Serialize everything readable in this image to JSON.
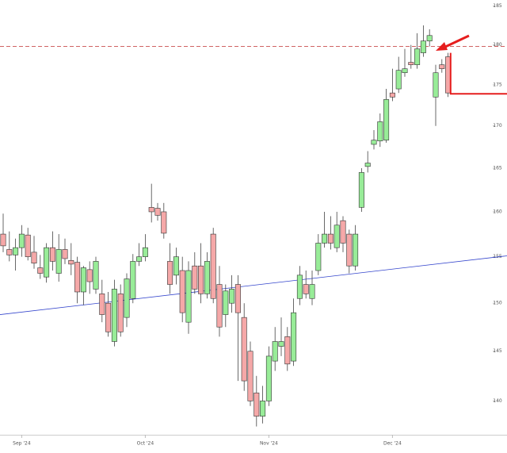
{
  "chart_data": {
    "type": "candlestick",
    "log_scale": true,
    "ylim": [
      136.7,
      185.8
    ],
    "yticks": [
      140,
      145,
      150,
      155,
      160,
      165,
      170,
      175,
      180,
      185
    ],
    "categories": [
      null,
      null,
      null,
      "Sep '24",
      null,
      null,
      null,
      null,
      null,
      null,
      null,
      null,
      null,
      null,
      null,
      null,
      null,
      null,
      null,
      null,
      null,
      null,
      null,
      "Oct '24",
      null,
      null,
      null,
      null,
      null,
      null,
      null,
      null,
      null,
      null,
      null,
      null,
      null,
      null,
      null,
      null,
      null,
      null,
      null,
      "Nov '24",
      null,
      null,
      null,
      null,
      null,
      null,
      null,
      null,
      null,
      null,
      null,
      null,
      null,
      null,
      null,
      null,
      null,
      null,
      null,
      "Dec '24",
      null,
      null,
      null,
      null,
      null,
      null,
      null,
      null,
      null
    ],
    "open": [
      157.5,
      155.8,
      155.2,
      156,
      157.4,
      155.5,
      153.8,
      152.8,
      156,
      153.2,
      155.8,
      154.6,
      154.4,
      151.2,
      153.6,
      151.5,
      151,
      150,
      146,
      151,
      148.5,
      150.5,
      154.5,
      155,
      160.5,
      160.4,
      160,
      154.5,
      153,
      153.5,
      148,
      154,
      154,
      151,
      157.5,
      152,
      148.8,
      150,
      152,
      148.5,
      145,
      140.8,
      138.5,
      140,
      144,
      145.5,
      146.5,
      144,
      150.5,
      152,
      150.5,
      153.5,
      156.5,
      157.5,
      156,
      159,
      157.5,
      154,
      160.5,
      165.2,
      167.8,
      168.2,
      168.3,
      174,
      174.5,
      176.5,
      177.8,
      177.5,
      179,
      180.5,
      173.5,
      177.5,
      178.5
    ],
    "high": [
      159.8,
      157.8,
      157,
      158.5,
      158.2,
      157.3,
      155.2,
      156.5,
      157.8,
      157.5,
      157,
      156.5,
      155,
      154,
      154.5,
      155,
      152.5,
      151.2,
      152.5,
      152,
      153.2,
      155.3,
      156.5,
      157.5,
      163.2,
      161,
      161,
      156.5,
      156,
      155,
      154.5,
      155.5,
      156.5,
      155.5,
      158.2,
      154,
      152,
      153,
      153,
      150,
      146,
      142.5,
      141.5,
      145.5,
      147.5,
      148.5,
      147.5,
      150.5,
      154,
      153.5,
      153.5,
      157.5,
      160,
      159.5,
      160,
      159.5,
      158,
      158.5,
      165,
      167,
      169.5,
      171.5,
      174.5,
      177,
      178.5,
      179.5,
      180,
      181.5,
      182.5,
      182,
      177.5,
      178.2,
      179
    ],
    "low": [
      155.5,
      154.5,
      153.5,
      155,
      154.6,
      153.7,
      152.6,
      152.2,
      153.5,
      152.3,
      154.2,
      153,
      150,
      149.8,
      151,
      151,
      148,
      146.5,
      145.5,
      146.5,
      147.5,
      150,
      154,
      154.5,
      158.8,
      159,
      157,
      151,
      152,
      148,
      146.8,
      151,
      150,
      150.5,
      150,
      146.5,
      147.5,
      149,
      142,
      141,
      139.5,
      137.5,
      137.8,
      139.5,
      143,
      144.5,
      143,
      143.5,
      149.8,
      150.5,
      149.8,
      153,
      156,
      155.8,
      155.5,
      155.5,
      153.2,
      153.5,
      160,
      164.5,
      167.2,
      167.5,
      168,
      173,
      174,
      176,
      177,
      177,
      178.5,
      179.8,
      170,
      176.5,
      173.5
    ],
    "close": [
      156.2,
      155.2,
      156,
      157.5,
      155,
      154.3,
      153.2,
      156,
      154.5,
      155.8,
      154.8,
      154.2,
      151.2,
      153.8,
      152.3,
      154.5,
      148.8,
      147,
      151.5,
      147,
      152.6,
      154.5,
      155,
      156,
      160,
      159.6,
      157.6,
      152,
      155,
      149,
      153.5,
      151.5,
      151,
      154.5,
      150.5,
      147.5,
      151.3,
      151.5,
      149,
      142,
      140,
      138.5,
      140,
      144.5,
      146,
      146,
      143.7,
      149,
      153,
      151,
      152,
      156.5,
      157.5,
      156.5,
      158.5,
      156.5,
      154,
      157.5,
      164.5,
      165.6,
      168.3,
      170.5,
      173.2,
      173.5,
      176.8,
      177,
      177.5,
      179.5,
      180.5,
      181.2,
      176.5,
      177,
      174
    ],
    "dashed_level": 179.8,
    "support_level": 173.9,
    "trendline": [
      148.8,
      155.1
    ]
  }
}
